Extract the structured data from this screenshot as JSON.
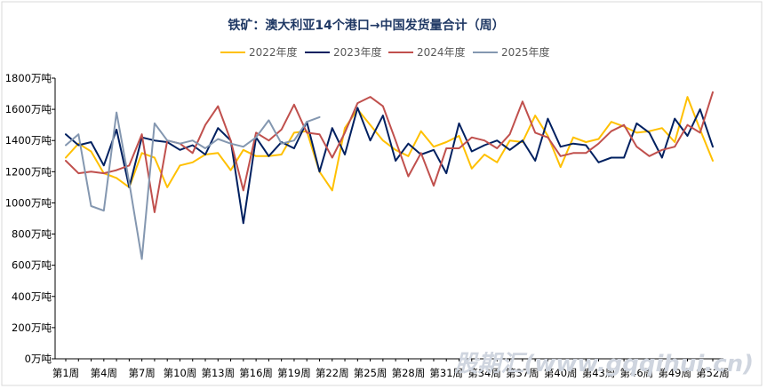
{
  "chart_data": {
    "type": "line",
    "title": "铁矿：澳大利亚14个港口→中国发货量合计（周）",
    "xlabel": "",
    "ylabel": "",
    "ylim": [
      0,
      1800
    ],
    "yticks": [
      "0万吨",
      "200万吨",
      "400万吨",
      "600万吨",
      "800万吨",
      "1000万吨",
      "1200万吨",
      "1400万吨",
      "1600万吨",
      "1800万吨"
    ],
    "xtick_labels": [
      "第1周",
      "第4周",
      "第7周",
      "第10周",
      "第13周",
      "第16周",
      "第19周",
      "第22周",
      "第25周",
      "第28周",
      "第31周",
      "第34周",
      "第37周",
      "第40周",
      "第43周",
      "第46周",
      "第49周",
      "第52周"
    ],
    "grid": false,
    "legend_position": "top",
    "series": [
      {
        "name": "2022年度",
        "color": "#FFC000",
        "values": [
          1290,
          1380,
          1330,
          1190,
          1160,
          1100,
          1320,
          1290,
          1100,
          1240,
          1260,
          1310,
          1320,
          1210,
          1340,
          1300,
          1300,
          1310,
          1450,
          1460,
          1200,
          1080,
          1480,
          1600,
          1500,
          1400,
          1340,
          1300,
          1460,
          1360,
          1390,
          1430,
          1220,
          1310,
          1260,
          1400,
          1390,
          1560,
          1430,
          1230,
          1420,
          1390,
          1410,
          1520,
          1490,
          1450,
          1460,
          1480,
          1390,
          1680,
          1470,
          1270
        ]
      },
      {
        "name": "2023年度",
        "color": "#002060",
        "values": [
          1440,
          1370,
          1390,
          1240,
          1470,
          1100,
          1420,
          1400,
          1390,
          1340,
          1370,
          1310,
          1480,
          1400,
          870,
          1420,
          1300,
          1390,
          1350,
          1520,
          1200,
          1480,
          1310,
          1610,
          1400,
          1560,
          1270,
          1380,
          1310,
          1340,
          1190,
          1510,
          1330,
          1370,
          1400,
          1340,
          1400,
          1270,
          1540,
          1360,
          1380,
          1370,
          1260,
          1290,
          1290,
          1510,
          1450,
          1290,
          1540,
          1430,
          1600,
          1360
        ]
      },
      {
        "name": "2024年度",
        "color": "#C0504D",
        "values": [
          1270,
          1190,
          1200,
          1190,
          1210,
          1240,
          1440,
          940,
          1400,
          1380,
          1320,
          1500,
          1620,
          1400,
          1080,
          1450,
          1400,
          1470,
          1630,
          1450,
          1440,
          1290,
          1450,
          1640,
          1680,
          1620,
          1400,
          1170,
          1320,
          1110,
          1350,
          1350,
          1420,
          1400,
          1350,
          1440,
          1650,
          1450,
          1420,
          1300,
          1320,
          1320,
          1380,
          1460,
          1500,
          1360,
          1300,
          1340,
          1360,
          1500,
          1450,
          1710
        ]
      },
      {
        "name": "2025年度",
        "color": "#8497B0",
        "values": [
          1370,
          1440,
          980,
          950,
          1580,
          1130,
          640,
          1510,
          1400,
          1380,
          1400,
          1350,
          1410,
          1380,
          1360,
          1420,
          1530,
          1380,
          1400,
          1520,
          1550
        ]
      }
    ]
  },
  "watermark": "股期汇(www.gqqihui.cn)"
}
